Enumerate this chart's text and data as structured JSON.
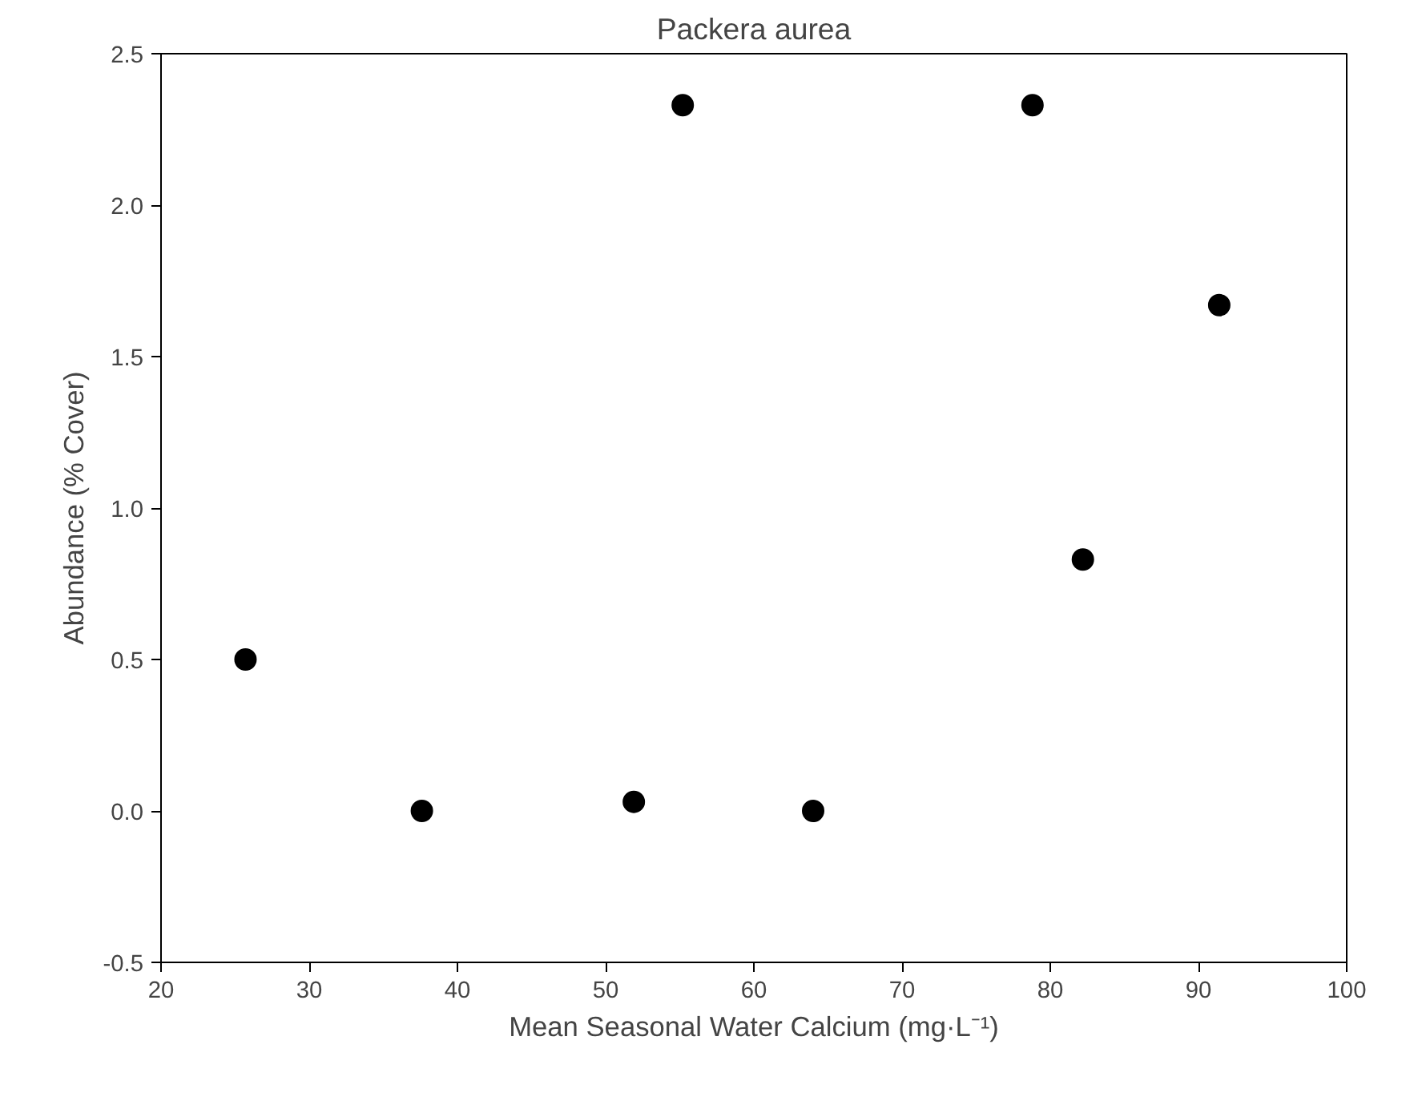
{
  "chart_data": {
    "type": "scatter",
    "title": "Packera aurea",
    "xlabel": "Mean Seasonal Water Calcium (mg·L⁻¹)",
    "ylabel": "Abundance (% Cover)",
    "x": [
      25.7,
      37.6,
      51.9,
      55.2,
      64.0,
      78.8,
      82.2,
      91.4
    ],
    "series": [
      {
        "color": "#000000",
        "values": [
          0.5,
          0.0,
          0.03,
          2.33,
          0.0,
          2.33,
          0.83,
          1.67
        ]
      }
    ],
    "xlim": [
      20,
      100
    ],
    "ylim": [
      -0.5,
      2.5
    ],
    "xticks": [
      20,
      30,
      40,
      50,
      60,
      70,
      80,
      90,
      100
    ],
    "yticks": [
      {
        "value": -0.5,
        "label": "-0.5"
      },
      {
        "value": 0,
        "label": "0.0"
      },
      {
        "value": 0.5,
        "label": "0.5"
      },
      {
        "value": 1,
        "label": "1.0"
      },
      {
        "value": 1.5,
        "label": "1.5"
      },
      {
        "value": 2,
        "label": "2.0"
      },
      {
        "value": 2.5,
        "label": "2.5"
      }
    ],
    "grid": false,
    "marker": "circle"
  }
}
